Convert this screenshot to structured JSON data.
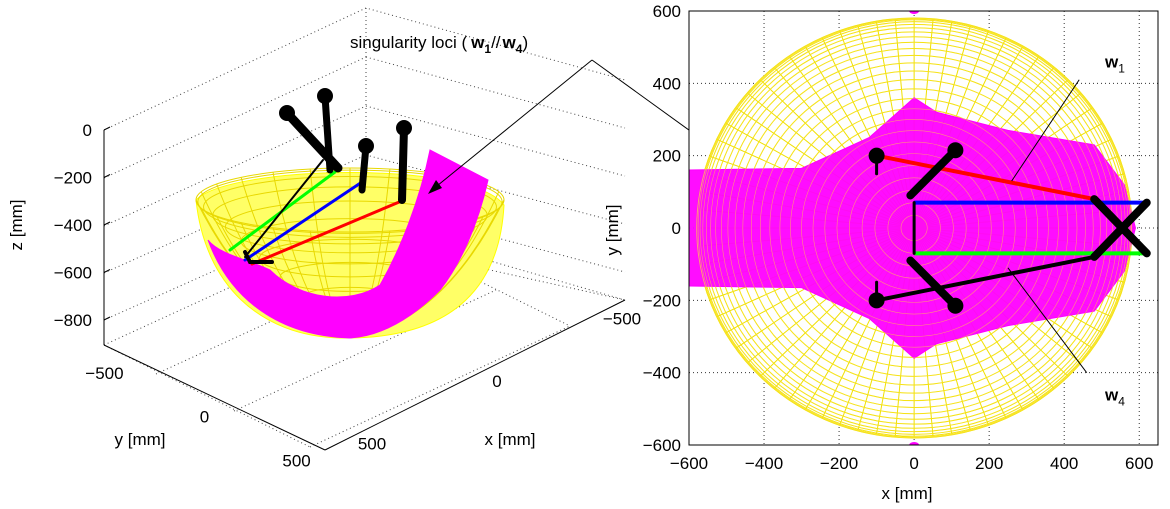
{
  "annotation": {
    "prefix": "singularity loci (",
    "w_a": "w",
    "sub_a": "1",
    "mid": "//",
    "w_b": "w",
    "sub_b": "4",
    "suffix": ")"
  },
  "chart_data": [
    {
      "type": "surface3d",
      "xlabel": "x [mm]",
      "ylabel": "y [mm]",
      "zlabel": "z [mm]",
      "xticks": [
        -500,
        0,
        500
      ],
      "yticks": [
        -500,
        0,
        500
      ],
      "zticks": [
        0,
        -200,
        -400,
        -600,
        -800
      ],
      "xlim": [
        -600,
        600
      ],
      "ylim": [
        -600,
        600
      ],
      "zlim": [
        -900,
        50
      ],
      "grid": true,
      "colors": {
        "mesh": "#ffff00",
        "singular": "#ff00ff",
        "leg1": "#ff0000",
        "leg2": "#0000ff",
        "leg3": "#00ff00",
        "links": "#000000"
      }
    },
    {
      "type": "surface2d_topview",
      "xlabel": "x [mm]",
      "ylabel": "y [mm]",
      "xticks": [
        -600,
        -400,
        -200,
        0,
        200,
        400,
        600
      ],
      "yticks": [
        -600,
        -400,
        -200,
        0,
        200,
        400,
        600
      ],
      "xlim": [
        -600,
        650
      ],
      "ylim": [
        -600,
        600
      ],
      "grid": true,
      "labels": [
        {
          "w": "w",
          "sub": "1",
          "x": 530,
          "y": 460
        },
        {
          "w": "w",
          "sub": "4",
          "x": 530,
          "y": -460
        }
      ],
      "legs": [
        {
          "color": "#ff0000",
          "from": [
            -100,
            200
          ],
          "to": [
            480,
            80
          ]
        },
        {
          "color": "#0000ff",
          "from": [
            0,
            70
          ],
          "to": [
            620,
            70
          ]
        },
        {
          "color": "#00ff00",
          "from": [
            0,
            -70
          ],
          "to": [
            620,
            -70
          ]
        },
        {
          "color": "#000000",
          "from": [
            -100,
            -200
          ],
          "to": [
            480,
            -80
          ]
        }
      ]
    }
  ]
}
